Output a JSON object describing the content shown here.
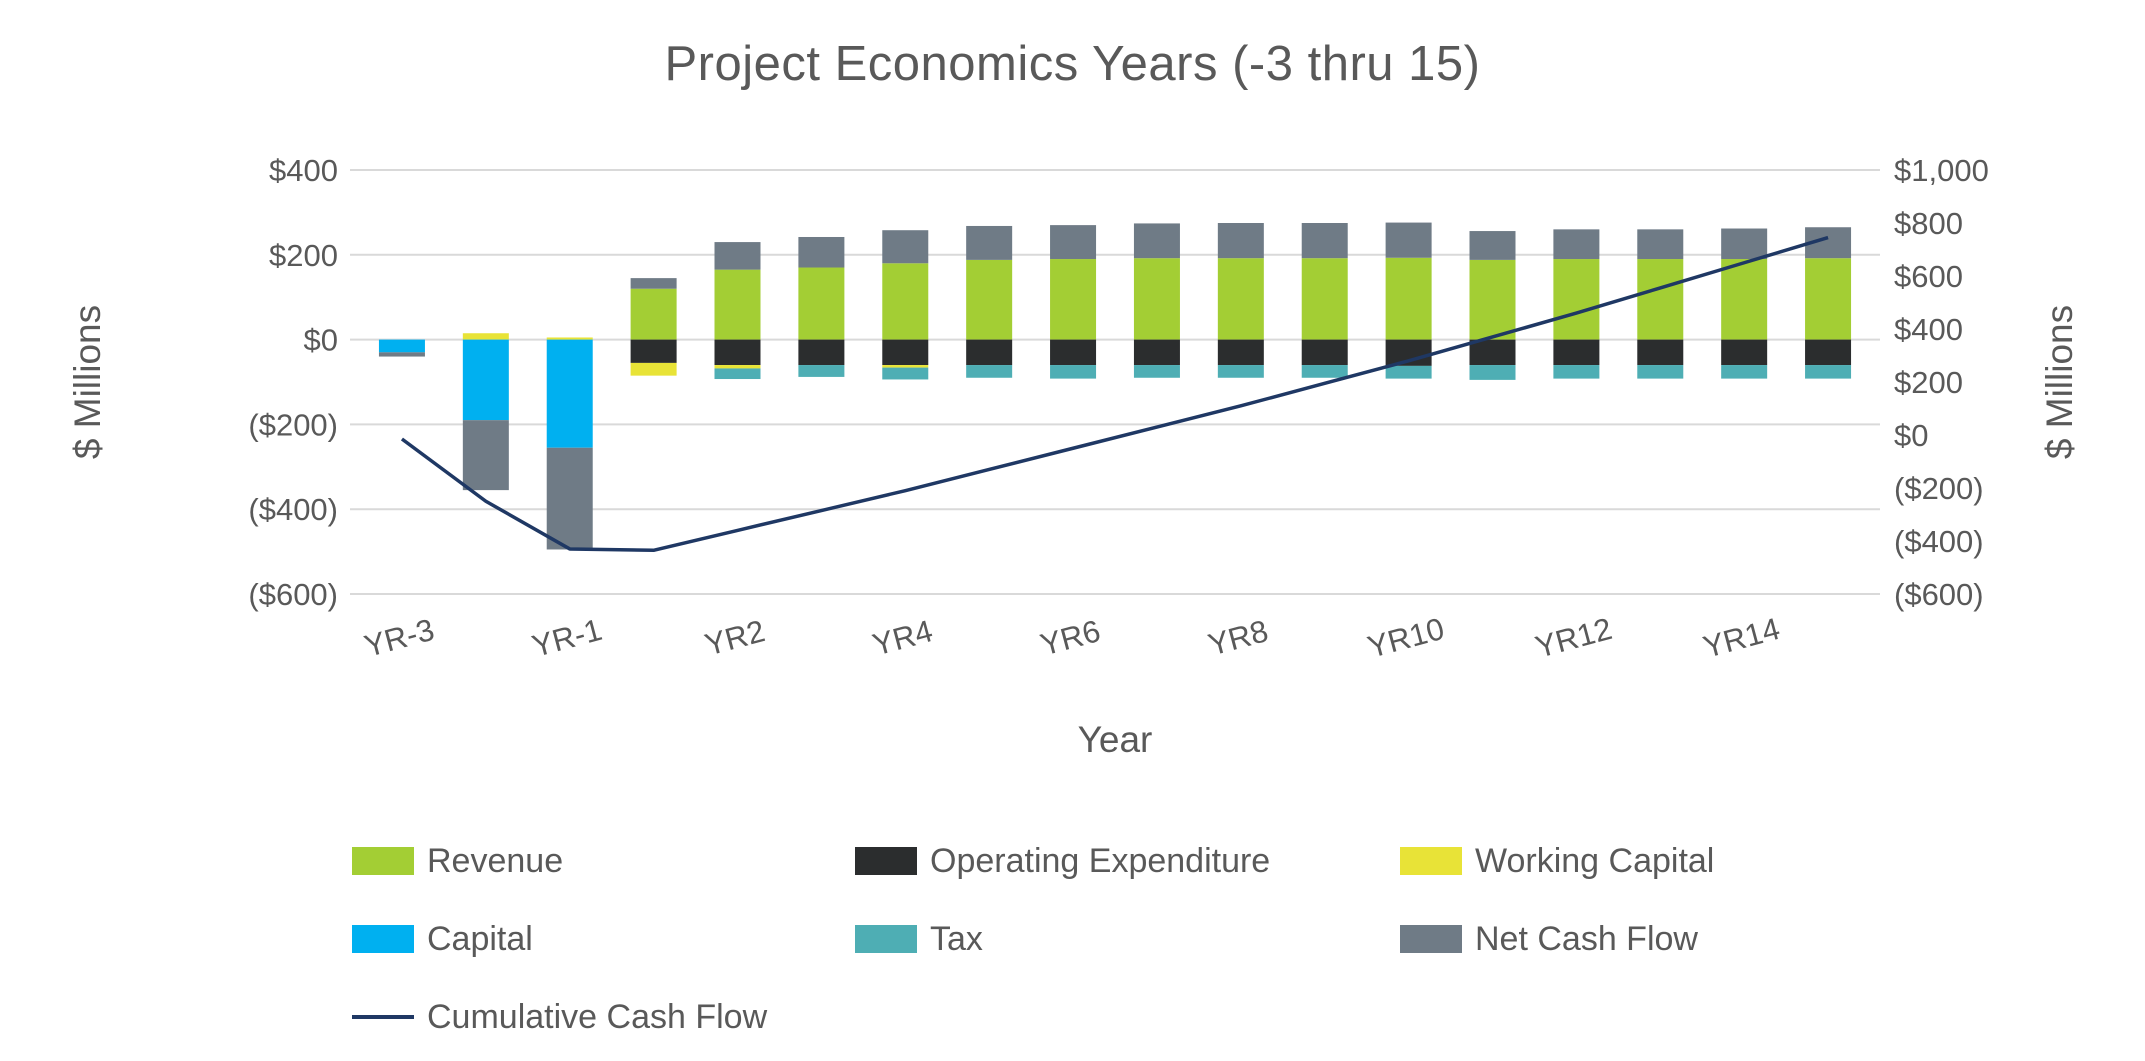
{
  "chart_data": {
    "type": "bar",
    "subtype": "stacked-bars-with-cumulative-line",
    "title": "Project Economics Years (-3 thru 15)",
    "xlabel": "Year",
    "ylabel_left": "$ Millions",
    "ylabel_right": "$ Millions",
    "grid": true,
    "text_color": "#595959",
    "gridline_color": "#D9D9D9",
    "categories": [
      "YR-3",
      "YR-2",
      "YR-1",
      "YR1",
      "YR2",
      "YR3",
      "YR4",
      "YR5",
      "YR6",
      "YR7",
      "YR8",
      "YR9",
      "YR10",
      "YR11",
      "YR12",
      "YR13",
      "YR14",
      "YR15"
    ],
    "x_tick_labels": [
      "YR-3",
      "YR-1",
      "YR2",
      "YR4",
      "YR6",
      "YR8",
      "YR10",
      "YR12",
      "YR14"
    ],
    "left_axis": {
      "min": -600,
      "max": 400,
      "ticks": [
        {
          "label": "$400",
          "value": 400
        },
        {
          "label": "$200",
          "value": 200
        },
        {
          "label": "$0",
          "value": 0
        },
        {
          "label": "($200)",
          "value": -200
        },
        {
          "label": "($400)",
          "value": -400
        },
        {
          "label": "($600)",
          "value": -600
        }
      ]
    },
    "right_axis": {
      "min": -600,
      "max": 1000,
      "ticks": [
        {
          "label": "$1,000",
          "value": 1000
        },
        {
          "label": "$800",
          "value": 800
        },
        {
          "label": "$600",
          "value": 600
        },
        {
          "label": "$400",
          "value": 400
        },
        {
          "label": "$200",
          "value": 200
        },
        {
          "label": "$0",
          "value": 0
        },
        {
          "label": "($200)",
          "value": -200
        },
        {
          "label": "($400)",
          "value": -400
        },
        {
          "label": "($600)",
          "value": -600
        }
      ]
    },
    "bar_series": [
      {
        "name": "Revenue",
        "color": "#A3CE34",
        "values": [
          0,
          0,
          0,
          120,
          165,
          170,
          180,
          188,
          190,
          192,
          192,
          192,
          193,
          188,
          190,
          190,
          190,
          192
        ]
      },
      {
        "name": "Operating Expenditure",
        "color": "#2B2D2E",
        "values": [
          0,
          0,
          0,
          -55,
          -60,
          -60,
          -60,
          -60,
          -60,
          -60,
          -60,
          -60,
          -62,
          -60,
          -60,
          -60,
          -60,
          -60
        ]
      },
      {
        "name": "Working Capital",
        "color": "#E8E337",
        "values": [
          0,
          15,
          5,
          -30,
          -8,
          0,
          -6,
          0,
          0,
          0,
          0,
          0,
          0,
          0,
          0,
          0,
          0,
          0
        ]
      },
      {
        "name": "Capital",
        "color": "#00B0F0",
        "values": [
          -30,
          -190,
          -255,
          0,
          0,
          0,
          0,
          0,
          0,
          0,
          0,
          0,
          0,
          0,
          0,
          0,
          0,
          0
        ]
      },
      {
        "name": "Tax",
        "color": "#4EAEB4",
        "values": [
          0,
          0,
          0,
          0,
          -25,
          -28,
          -28,
          -30,
          -32,
          -30,
          -30,
          -30,
          -30,
          -35,
          -32,
          -32,
          -32,
          -32
        ]
      },
      {
        "name": "Net Cash Flow",
        "color": "#6F7B86",
        "values": [
          -10,
          -165,
          -240,
          25,
          65,
          72,
          78,
          80,
          80,
          82,
          83,
          83,
          83,
          68,
          70,
          70,
          72,
          73
        ]
      }
    ],
    "line_series": {
      "name": "Cumulative Cash Flow",
      "color": "#1F3864",
      "axis": "right",
      "values": [
        -15,
        -250,
        -430,
        -435,
        -360,
        -285,
        -210,
        -130,
        -50,
        30,
        110,
        195,
        280,
        370,
        460,
        555,
        650,
        745
      ]
    },
    "legend_position": "bottom"
  }
}
